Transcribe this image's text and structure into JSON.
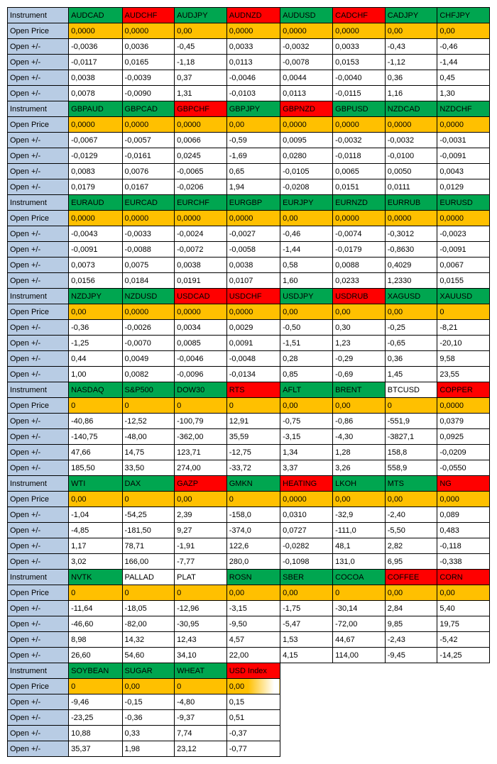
{
  "labels": {
    "instrument": "Instrument",
    "openPrice": "Open Price",
    "openPM": "Open +/-"
  },
  "styling": {
    "labelBg": "#b8cce4",
    "greenHdr": "#00a650",
    "redHdr": "#ff0000",
    "orangeBg": "#ffc000",
    "whiteBg": "#ffffff",
    "borderColor": "#000000",
    "fontSize": 11,
    "fontFamily": "Arial"
  },
  "blocks": [
    {
      "headers": [
        {
          "txt": "AUDCAD",
          "cls": "hdr-green"
        },
        {
          "txt": "AUDCHF",
          "cls": "hdr-red"
        },
        {
          "txt": "AUDJPY",
          "cls": "hdr-green"
        },
        {
          "txt": "AUDNZD",
          "cls": "hdr-red"
        },
        {
          "txt": "AUDUSD",
          "cls": "hdr-green"
        },
        {
          "txt": "CADCHF",
          "cls": "hdr-red"
        },
        {
          "txt": "CADJPY",
          "cls": "hdr-green"
        },
        {
          "txt": "CHFJPY",
          "cls": "hdr-green"
        }
      ],
      "openPrice": [
        "0,0000",
        "0,0000",
        "0,00",
        "0,0000",
        "0,0000",
        "0,0000",
        "0,00",
        "0,00"
      ],
      "rows": [
        [
          "-0,0036",
          "0,0036",
          "-0,45",
          "0,0033",
          "-0,0032",
          "0,0033",
          "-0,43",
          "-0,46"
        ],
        [
          "-0,0117",
          "0,0165",
          "-1,18",
          "0,0113",
          "-0,0078",
          "0,0153",
          "-1,12",
          "-1,44"
        ],
        [
          "0,0038",
          "-0,0039",
          "0,37",
          "-0,0046",
          "0,0044",
          "-0,0040",
          "0,36",
          "0,45"
        ],
        [
          "0,0078",
          "-0,0090",
          "1,31",
          "-0,0103",
          "0,0113",
          "-0,0115",
          "1,16",
          "1,30"
        ]
      ]
    },
    {
      "headers": [
        {
          "txt": "GBPAUD",
          "cls": "hdr-green"
        },
        {
          "txt": "GBPCAD",
          "cls": "hdr-green"
        },
        {
          "txt": "GBPCHF",
          "cls": "hdr-red"
        },
        {
          "txt": "GBPJPY",
          "cls": "hdr-green"
        },
        {
          "txt": "GBPNZD",
          "cls": "hdr-red"
        },
        {
          "txt": "GBPUSD",
          "cls": "hdr-green"
        },
        {
          "txt": "NZDCAD",
          "cls": "hdr-green"
        },
        {
          "txt": "NZDCHF",
          "cls": "hdr-green"
        }
      ],
      "openPrice": [
        "0,0000",
        "0,0000",
        "0,0000",
        "0,00",
        "0,0000",
        "0,0000",
        "0,0000",
        "0,0000"
      ],
      "rows": [
        [
          "-0,0067",
          "-0,0057",
          "0,0066",
          "-0,59",
          "0,0095",
          "-0,0032",
          "-0,0032",
          "-0,0031"
        ],
        [
          "-0,0129",
          "-0,0161",
          "0,0245",
          "-1,69",
          "0,0280",
          "-0,0118",
          "-0,0100",
          "-0,0091"
        ],
        [
          "0,0083",
          "0,0076",
          "-0,0065",
          "0,65",
          "-0,0105",
          "0,0065",
          "0,0050",
          "0,0043"
        ],
        [
          "0,0179",
          "0,0167",
          "-0,0206",
          "1,94",
          "-0,0208",
          "0,0151",
          "0,0111",
          "0,0129"
        ]
      ]
    },
    {
      "headers": [
        {
          "txt": "EURAUD",
          "cls": "hdr-green"
        },
        {
          "txt": "EURCAD",
          "cls": "hdr-green"
        },
        {
          "txt": "EURCHF",
          "cls": "hdr-green"
        },
        {
          "txt": "EURGBP",
          "cls": "hdr-green"
        },
        {
          "txt": "EURJPY",
          "cls": "hdr-green"
        },
        {
          "txt": "EURNZD",
          "cls": "hdr-green"
        },
        {
          "txt": "EURRUB",
          "cls": "hdr-green"
        },
        {
          "txt": "EURUSD",
          "cls": "hdr-green"
        }
      ],
      "openPrice": [
        "0,0000",
        "0,0000",
        "0,0000",
        "0,0000",
        "0,00",
        "0,0000",
        "0,0000",
        "0,0000"
      ],
      "rows": [
        [
          "-0,0043",
          "-0,0033",
          "-0,0024",
          "-0,0027",
          "-0,46",
          "-0,0074",
          "-0,3012",
          "-0,0023"
        ],
        [
          "-0,0091",
          "-0,0088",
          "-0,0072",
          "-0,0058",
          "-1,44",
          "-0,0179",
          "-0,8630",
          "-0,0091"
        ],
        [
          "0,0073",
          "0,0075",
          "0,0038",
          "0,0038",
          "0,58",
          "0,0088",
          "0,4029",
          "0,0067"
        ],
        [
          "0,0156",
          "0,0184",
          "0,0191",
          "0,0107",
          "1,60",
          "0,0233",
          "1,2330",
          "0,0155"
        ]
      ]
    },
    {
      "headers": [
        {
          "txt": "NZDJPY",
          "cls": "hdr-green"
        },
        {
          "txt": "NZDUSD",
          "cls": "hdr-green"
        },
        {
          "txt": "USDCAD",
          "cls": "hdr-red"
        },
        {
          "txt": "USDCHF",
          "cls": "hdr-red"
        },
        {
          "txt": "USDJPY",
          "cls": "hdr-green"
        },
        {
          "txt": "USDRUB",
          "cls": "hdr-red"
        },
        {
          "txt": "XAGUSD",
          "cls": "hdr-green"
        },
        {
          "txt": "XAUUSD",
          "cls": "hdr-green"
        }
      ],
      "openPrice": [
        "0,00",
        "0,0000",
        "0,0000",
        "0,0000",
        "0,00",
        "0,00",
        "0,00",
        "0"
      ],
      "rows": [
        [
          "-0,36",
          "-0,0026",
          "0,0034",
          "0,0029",
          "-0,50",
          "0,30",
          "-0,25",
          "-8,21"
        ],
        [
          "-1,25",
          "-0,0070",
          "0,0085",
          "0,0091",
          "-1,51",
          "1,23",
          "-0,65",
          "-20,10"
        ],
        [
          "0,44",
          "0,0049",
          "-0,0046",
          "-0,0048",
          "0,28",
          "-0,29",
          "0,36",
          "9,58"
        ],
        [
          "1,00",
          "0,0082",
          "-0,0096",
          "-0,0134",
          "0,85",
          "-0,69",
          "1,45",
          "23,55"
        ]
      ]
    },
    {
      "headers": [
        {
          "txt": "NASDAQ",
          "cls": "hdr-green"
        },
        {
          "txt": "S&P500",
          "cls": "hdr-green"
        },
        {
          "txt": "DOW30",
          "cls": "hdr-green"
        },
        {
          "txt": "RTS",
          "cls": "hdr-red"
        },
        {
          "txt": "AFLT",
          "cls": "hdr-green"
        },
        {
          "txt": "BRENT",
          "cls": "hdr-green"
        },
        {
          "txt": "BTCUSD",
          "cls": "hdr-white"
        },
        {
          "txt": "COPPER",
          "cls": "hdr-red"
        }
      ],
      "openPrice": [
        "0",
        "0",
        "0",
        "0",
        "0,00",
        "0,00",
        "0",
        "0,0000"
      ],
      "rows": [
        [
          "-40,86",
          "-12,52",
          "-100,79",
          "12,91",
          "-0,75",
          "-0,86",
          "-551,9",
          "0,0379"
        ],
        [
          "-140,75",
          "-48,00",
          "-362,00",
          "35,59",
          "-3,15",
          "-4,30",
          "-3827,1",
          "0,0925"
        ],
        [
          "47,66",
          "14,75",
          "123,71",
          "-12,75",
          "1,34",
          "1,28",
          "158,8",
          "-0,0209"
        ],
        [
          "185,50",
          "33,50",
          "274,00",
          "-33,72",
          "3,37",
          "3,26",
          "558,9",
          "-0,0550"
        ]
      ]
    },
    {
      "headers": [
        {
          "txt": "WTI",
          "cls": "hdr-green"
        },
        {
          "txt": "DAX",
          "cls": "hdr-green"
        },
        {
          "txt": "GAZP",
          "cls": "hdr-red"
        },
        {
          "txt": "GMKN",
          "cls": "hdr-green"
        },
        {
          "txt": "HEATING",
          "cls": "hdr-red"
        },
        {
          "txt": "LKOH",
          "cls": "hdr-green"
        },
        {
          "txt": "MTS",
          "cls": "hdr-green"
        },
        {
          "txt": "NG",
          "cls": "hdr-red"
        }
      ],
      "openPrice": [
        "0,00",
        "0",
        "0,00",
        "0",
        "0,0000",
        "0,00",
        "0,00",
        "0,000"
      ],
      "rows": [
        [
          "-1,04",
          "-54,25",
          "2,39",
          "-158,0",
          "0,0310",
          "-32,9",
          "-2,40",
          "0,089"
        ],
        [
          "-4,85",
          "-181,50",
          "9,27",
          "-374,0",
          "0,0727",
          "-111,0",
          "-5,50",
          "0,483"
        ],
        [
          "1,17",
          "78,71",
          "-1,91",
          "122,6",
          "-0,0282",
          "48,1",
          "2,82",
          "-0,118"
        ],
        [
          "3,02",
          "166,00",
          "-7,77",
          "280,0",
          "-0,1098",
          "131,0",
          "6,95",
          "-0,338"
        ]
      ]
    },
    {
      "headers": [
        {
          "txt": "NVTK",
          "cls": "hdr-green"
        },
        {
          "txt": "PALLAD",
          "cls": "hdr-white"
        },
        {
          "txt": "PLAT",
          "cls": "hdr-white"
        },
        {
          "txt": "ROSN",
          "cls": "hdr-green"
        },
        {
          "txt": "SBER",
          "cls": "hdr-green"
        },
        {
          "txt": "COCOA",
          "cls": "hdr-green"
        },
        {
          "txt": "COFFEE",
          "cls": "hdr-red"
        },
        {
          "txt": "CORN",
          "cls": "hdr-red"
        }
      ],
      "openPrice": [
        "0",
        "0",
        "0",
        "0,00",
        "0,00",
        "0",
        "0,00",
        "0,00"
      ],
      "rows": [
        [
          "-11,64",
          "-18,05",
          "-12,96",
          "-3,15",
          "-1,75",
          "-30,14",
          "2,84",
          "5,40"
        ],
        [
          "-46,60",
          "-82,00",
          "-30,95",
          "-9,50",
          "-5,47",
          "-72,00",
          "9,85",
          "19,75"
        ],
        [
          "8,98",
          "14,32",
          "12,43",
          "4,57",
          "1,53",
          "44,67",
          "-2,43",
          "-5,42"
        ],
        [
          "26,60",
          "54,60",
          "34,10",
          "22,00",
          "4,15",
          "114,00",
          "-9,45",
          "-14,25"
        ]
      ]
    },
    {
      "headers": [
        {
          "txt": "SOYBEAN",
          "cls": "hdr-green"
        },
        {
          "txt": "SUGAR",
          "cls": "hdr-green"
        },
        {
          "txt": "WHEAT",
          "cls": "hdr-green"
        },
        {
          "txt": "USD Index",
          "cls": "hdr-red"
        }
      ],
      "openPrice": [
        "0",
        "0,00",
        "0",
        "0,00"
      ],
      "openPriceFadeIdx": 3,
      "rows": [
        [
          "-9,46",
          "-0,15",
          "-4,80",
          "0,15"
        ],
        [
          "-23,25",
          "-0,36",
          "-9,37",
          "0,51"
        ],
        [
          "10,88",
          "0,33",
          "7,74",
          "-0,37"
        ],
        [
          "35,37",
          "1,98",
          "23,12",
          "-0,77"
        ]
      ]
    }
  ]
}
